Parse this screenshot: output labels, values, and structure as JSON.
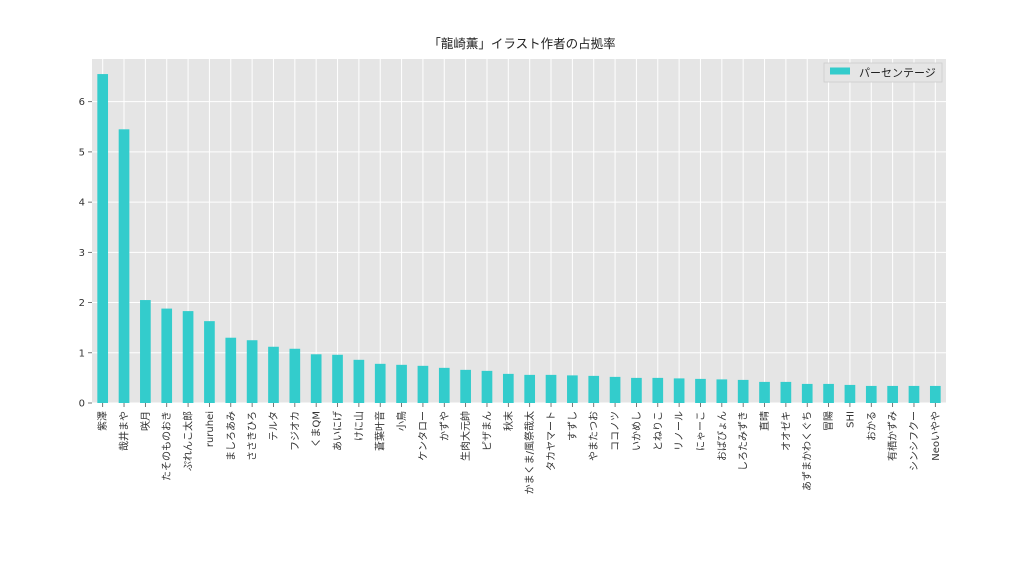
{
  "chart_data": {
    "type": "bar",
    "title": "「龍崎薫」イラスト作者の占拠率",
    "xlabel": "",
    "ylabel": "",
    "ylim": [
      0,
      6.85
    ],
    "yticks": [
      0,
      1,
      2,
      3,
      4,
      5,
      6
    ],
    "grid": true,
    "legend_position": "top-right",
    "bar_color": "#33cccc",
    "background_color": "#e5e5e5",
    "categories": [
      "紫澤",
      "哉井まや",
      "咲月",
      "たそのものおき",
      "ぷれんこ太郎",
      "ruruhei",
      "ましろあみ",
      "ささきひろ",
      "テルタ",
      "フジオカ",
      "くまQM",
      "あいにげ",
      "けに山",
      "蒼葉叶音",
      "小鳥",
      "ケンタロー",
      "かずや",
      "生肉大元帥",
      "ピザまん",
      "秋末",
      "かまくま/風祭哉太",
      "タカヤマート",
      "すずし",
      "やまたつお",
      "ココノツ",
      "いかめし",
      "とねりこ",
      "リノール",
      "にゃーこ",
      "おばぴょん",
      "しろたみずき",
      "直晴",
      "オオゼキ",
      "あずまかわくぐち",
      "冒陽",
      "SHI",
      "おかる",
      "有栖かずみ",
      "シンシフクー",
      "Neoいやや"
    ],
    "series": [
      {
        "name": "パーセンテージ",
        "values": [
          6.55,
          5.45,
          2.05,
          1.88,
          1.83,
          1.63,
          1.3,
          1.25,
          1.12,
          1.08,
          0.97,
          0.96,
          0.86,
          0.78,
          0.76,
          0.74,
          0.7,
          0.66,
          0.64,
          0.58,
          0.56,
          0.56,
          0.55,
          0.54,
          0.52,
          0.5,
          0.5,
          0.49,
          0.48,
          0.47,
          0.46,
          0.42,
          0.42,
          0.38,
          0.38,
          0.36,
          0.34,
          0.34,
          0.34,
          0.34
        ]
      }
    ]
  }
}
